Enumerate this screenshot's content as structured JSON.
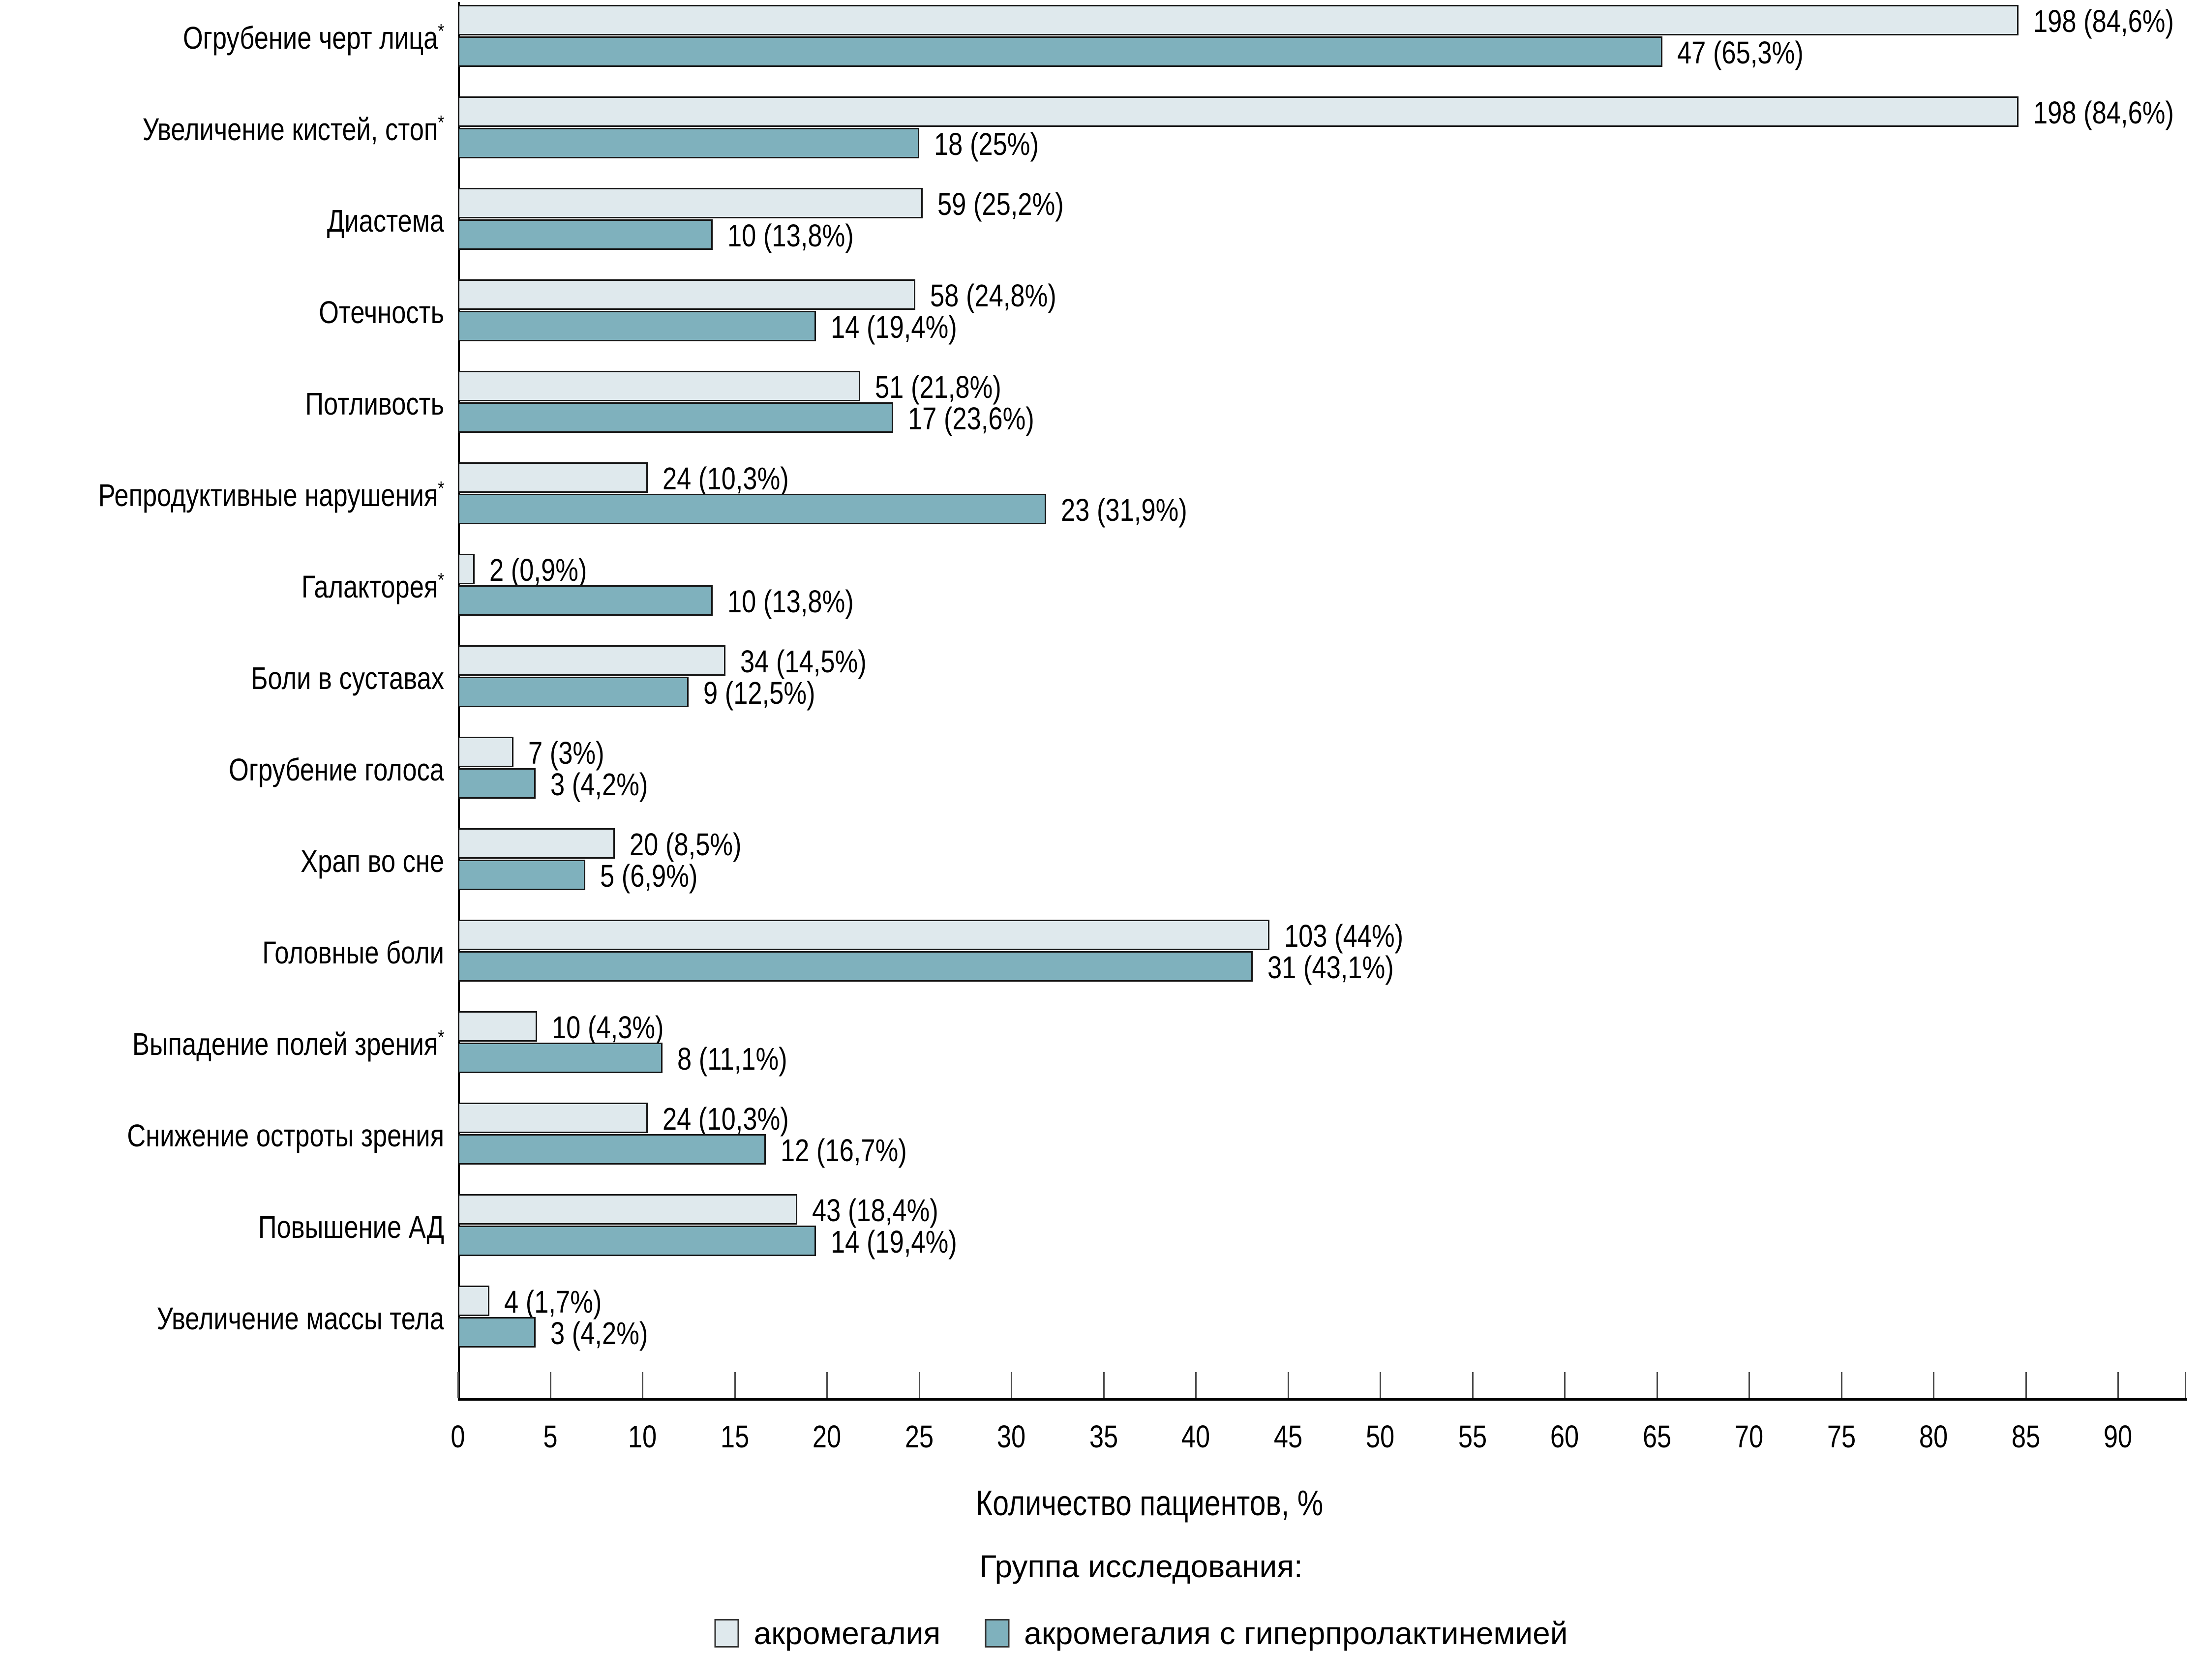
{
  "chart_data": {
    "type": "bar",
    "orientation": "horizontal",
    "title": "",
    "xlabel": "Количество пациентов, %",
    "ylabel": "",
    "xlim": [
      0,
      93.6
    ],
    "xticks": [
      0,
      5,
      10,
      15,
      20,
      25,
      30,
      35,
      40,
      45,
      50,
      55,
      60,
      65,
      70,
      75,
      80,
      85,
      90
    ],
    "grid": false,
    "legend_position": "bottom",
    "legend_title": "Группа исследования:",
    "colors": {
      "bar_acromegaly": "#dfe9ed",
      "bar_acromegaly_hyperprolactinemia": "#7fb1bd",
      "bar_border": "#161616",
      "axis": "#000000"
    },
    "categories": [
      {
        "label": "Огрубение черт лица",
        "asterisk": true
      },
      {
        "label": "Увеличение кистей, стоп",
        "asterisk": true
      },
      {
        "label": "Диастема",
        "asterisk": false
      },
      {
        "label": "Отечность",
        "asterisk": false
      },
      {
        "label": "Потливость",
        "asterisk": false
      },
      {
        "label": "Репродуктивные нарушения",
        "asterisk": true
      },
      {
        "label": "Галакторея",
        "asterisk": true
      },
      {
        "label": "Боли в суставах",
        "asterisk": false
      },
      {
        "label": "Огрубение голоса",
        "asterisk": false
      },
      {
        "label": "Храп во сне",
        "asterisk": false
      },
      {
        "label": "Головные боли",
        "asterisk": false
      },
      {
        "label": "Выпадение полей зрения",
        "asterisk": true
      },
      {
        "label": "Снижение остроты зрения",
        "asterisk": false
      },
      {
        "label": "Повышение АД",
        "asterisk": false
      },
      {
        "label": "Увеличение массы тела",
        "asterisk": false
      }
    ],
    "series": [
      {
        "name": "акромегалия",
        "color": "#dfe9ed",
        "values": [
          84.6,
          84.6,
          25.2,
          24.8,
          21.8,
          10.3,
          0.9,
          14.5,
          3,
          8.5,
          44,
          4.3,
          10.3,
          18.4,
          1.7
        ],
        "labels": [
          "198 (84,6%)",
          "198 (84,6%)",
          "59 (25,2%)",
          "58 (24,8%)",
          "51 (21,8%)",
          "24 (10,3%)",
          "2 (0,9%)",
          "34 (14,5%)",
          "7 (3%)",
          "20 (8,5%)",
          "103 (44%)",
          "10 (4,3%)",
          "24 (10,3%)",
          "43 (18,4%)",
          "4 (1,7%)"
        ]
      },
      {
        "name": "акромегалия с гиперпролактинемией",
        "color": "#7fb1bd",
        "values": [
          65.3,
          25,
          13.8,
          19.4,
          23.6,
          31.9,
          13.8,
          12.5,
          4.2,
          6.9,
          43.1,
          11.1,
          16.7,
          19.4,
          4.2
        ],
        "labels": [
          "47 (65,3%)",
          "18 (25%)",
          "10 (13,8%)",
          "14 (19,4%)",
          "17 (23,6%)",
          "23 (31,9%)",
          "10 (13,8%)",
          "9 (12,5%)",
          "3 (4,2%)",
          "5 (6,9%)",
          "31 (43,1%)",
          "8 (11,1%)",
          "12 (16,7%)",
          "14 (19,4%)",
          "3 (4,2%)"
        ]
      }
    ]
  }
}
